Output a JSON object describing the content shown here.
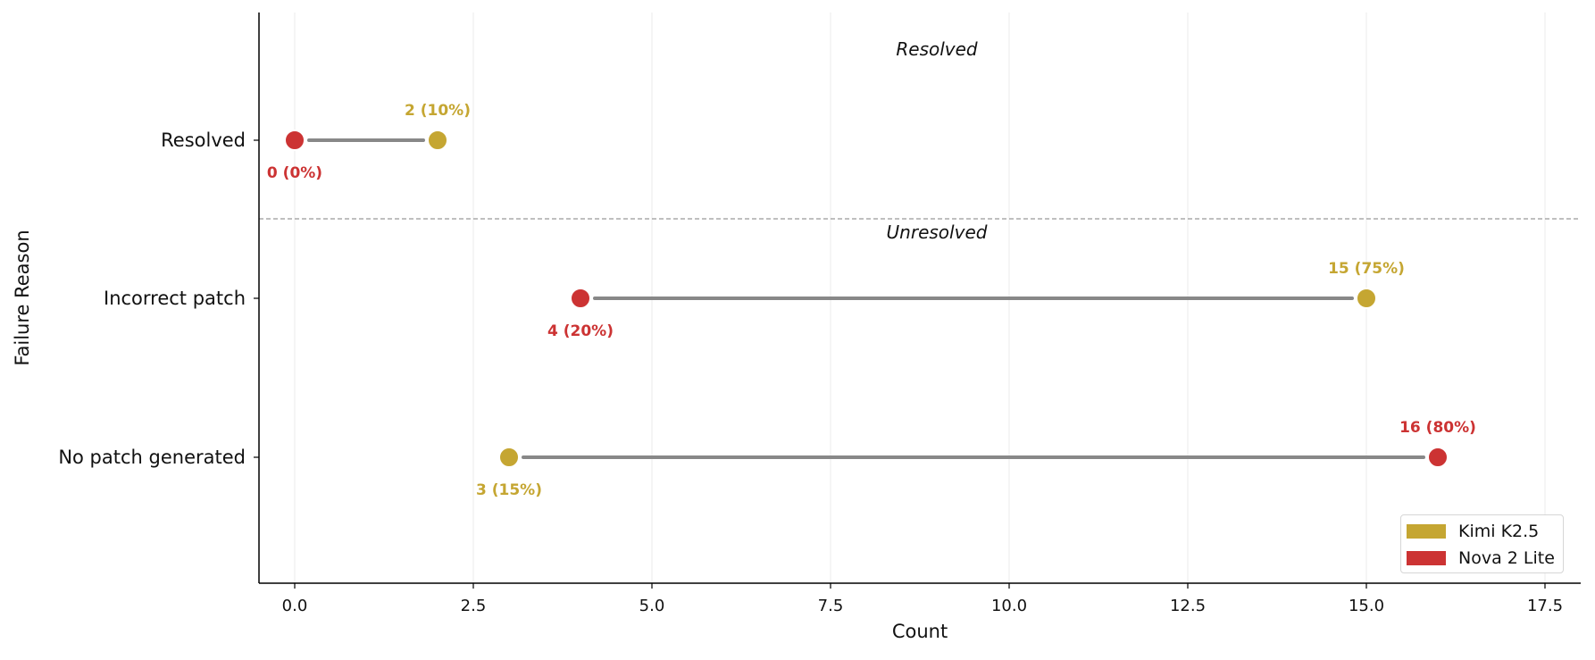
{
  "chart_data": {
    "type": "dumbbell",
    "xlabel": "Count",
    "ylabel": "Failure Reason",
    "xlim": [
      -0.5,
      18.0
    ],
    "x_ticks": [
      0.0,
      2.5,
      5.0,
      7.5,
      10.0,
      12.5,
      15.0,
      17.5
    ],
    "x_tick_labels": [
      "0.0",
      "2.5",
      "5.0",
      "7.5",
      "10.0",
      "12.5",
      "15.0",
      "17.5"
    ],
    "grid": "vertical",
    "categories": [
      "Resolved",
      "Incorrect patch",
      "No patch generated"
    ],
    "groups": [
      {
        "label": "Resolved",
        "categories": [
          "Resolved"
        ]
      },
      {
        "label": "Unresolved",
        "categories": [
          "Incorrect patch",
          "No patch generated"
        ]
      }
    ],
    "series": [
      {
        "name": "Kimi K2.5",
        "color": "#c5a632",
        "values": [
          2,
          15,
          3
        ],
        "labels": [
          "2 (10%)",
          "15 (75%)",
          "3 (15%)"
        ]
      },
      {
        "name": "Nova 2 Lite",
        "color": "#cc3333",
        "values": [
          0,
          4,
          16
        ],
        "labels": [
          "0 (0%)",
          "4 (20%)",
          "16 (80%)"
        ]
      }
    ],
    "connector_color": "#888888",
    "legend_position": "lower-right"
  }
}
